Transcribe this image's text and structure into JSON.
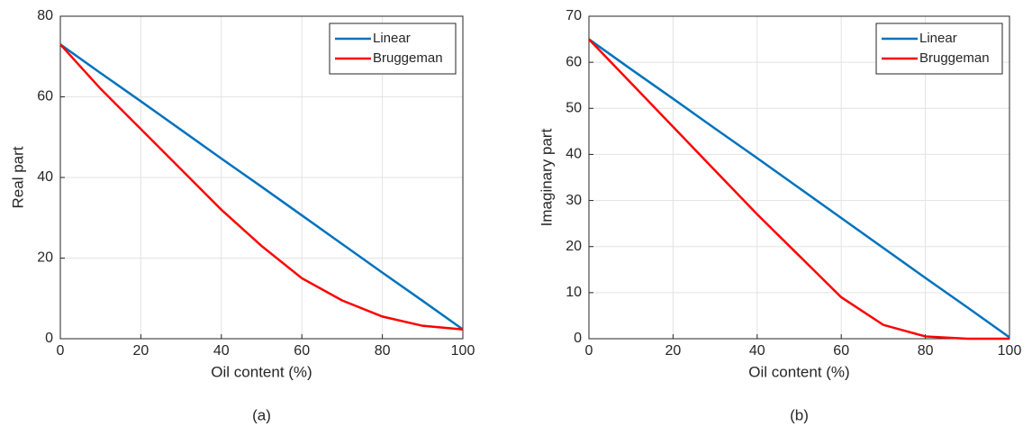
{
  "chart_data": [
    {
      "type": "line",
      "caption": "(a)",
      "xlabel": "Oil content (%)",
      "ylabel": "Real part",
      "x": [
        0,
        10,
        20,
        30,
        40,
        50,
        60,
        70,
        80,
        90,
        100
      ],
      "series": [
        {
          "name": "Linear",
          "color": "#0072bd",
          "values": [
            73,
            65.9,
            58.9,
            51.8,
            44.7,
            37.7,
            30.6,
            23.5,
            16.4,
            9.4,
            2.3
          ]
        },
        {
          "name": "Bruggeman",
          "color": "#ff0000",
          "values": [
            73,
            62,
            52,
            42,
            32,
            23,
            15,
            9.5,
            5.5,
            3.2,
            2.3
          ]
        }
      ],
      "xlim": [
        0,
        100
      ],
      "xticks": [
        0,
        20,
        40,
        60,
        80,
        100
      ],
      "ylim": [
        0,
        80
      ],
      "yticks": [
        0,
        20,
        40,
        60,
        80
      ],
      "grid": true,
      "legend": "northeast"
    },
    {
      "type": "line",
      "caption": "(b)",
      "xlabel": "Oil content (%)",
      "ylabel": "Imaginary part",
      "x": [
        0,
        10,
        20,
        30,
        40,
        50,
        60,
        70,
        80,
        90,
        100
      ],
      "series": [
        {
          "name": "Linear",
          "color": "#0072bd",
          "values": [
            65,
            58.5,
            52.1,
            45.6,
            39.2,
            32.7,
            26.2,
            19.7,
            13.2,
            6.8,
            0.3
          ]
        },
        {
          "name": "Bruggeman",
          "color": "#ff0000",
          "values": [
            65,
            55.5,
            46,
            36.5,
            27,
            18,
            9,
            3,
            0.5,
            0,
            0
          ]
        }
      ],
      "xlim": [
        0,
        100
      ],
      "xticks": [
        0,
        20,
        40,
        60,
        80,
        100
      ],
      "ylim": [
        0,
        70
      ],
      "yticks": [
        0,
        10,
        20,
        30,
        40,
        50,
        60,
        70
      ],
      "grid": true,
      "legend": "northeast"
    }
  ]
}
